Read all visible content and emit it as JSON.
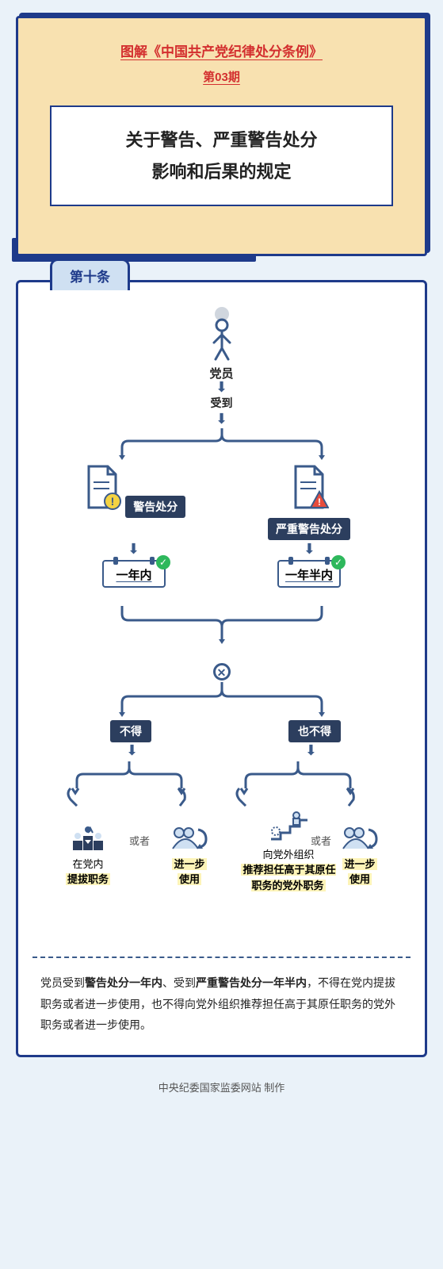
{
  "header": {
    "series": "图解《中国共产党纪律处分条例》",
    "issue": "第03期",
    "title_l1": "关于警告、严重警告处分",
    "title_l2": "影响和后果的规定"
  },
  "article_tab": "第十条",
  "flow": {
    "root": "党员",
    "receives": "受到",
    "warnL": "警告处分",
    "warnR": "严重警告处分",
    "periodL": "一年内",
    "periodR": "一年半内",
    "notL": "不得",
    "notR": "也不得",
    "or": "或者",
    "leaf1_pre": "在党内",
    "leaf1_hl": "提拔职务",
    "leaf2_hl1": "进一步",
    "leaf2_hl2": "使用",
    "leaf3_pre": "向党外组织",
    "leaf3_hl": "推荐担任高于其原任职务的党外职务",
    "leaf4_hl1": "进一步",
    "leaf4_hl2": "使用"
  },
  "summary": "党员受到<b>警告处分一年内</b>、受到<b>严重警告处分一年半内</b>，不得在党内提拔职务或者进一步使用，也不得向党外组织推荐担任高于其原任职务的党外职务或者进一步使用。",
  "footer": "中央纪委国家监委网站 制作",
  "colors": {
    "navy": "#1e3a8a",
    "slate": "#3a5a8a",
    "cream": "#f8e1b0",
    "bg": "#eaf2f9",
    "red": "#d32f2f",
    "highlight": "#fdf4b8",
    "dark": "#2c3e5e",
    "green": "#2eb85c"
  }
}
